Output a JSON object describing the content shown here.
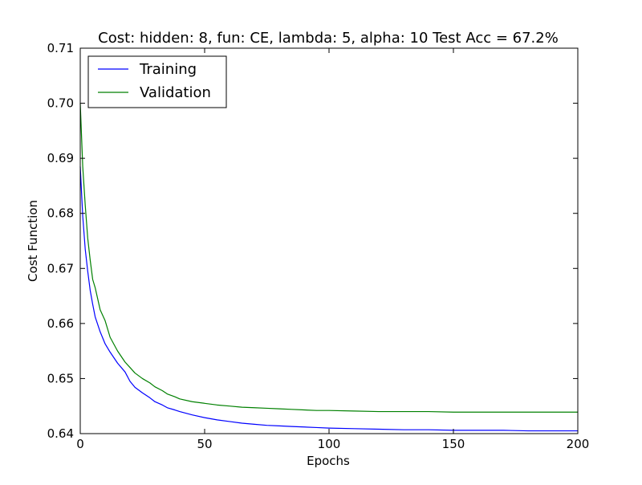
{
  "chart_data": {
    "type": "line",
    "title": "Cost: hidden: 8, fun: CE, lambda: 5, alpha: 10  Test Acc = 67.2%",
    "xlabel": "Epochs",
    "ylabel": "Cost Function",
    "xlim": [
      0,
      200
    ],
    "ylim": [
      0.64,
      0.71
    ],
    "xticks": [
      0,
      50,
      100,
      150,
      200
    ],
    "yticks": [
      0.64,
      0.65,
      0.66,
      0.67,
      0.68,
      0.69,
      0.7,
      0.71
    ],
    "xtick_labels": [
      "0",
      "50",
      "100",
      "150",
      "200"
    ],
    "ytick_labels": [
      "0.64",
      "0.65",
      "0.66",
      "0.67",
      "0.68",
      "0.69",
      "0.70",
      "0.71"
    ],
    "grid": false,
    "legend_position": "top-left",
    "series": [
      {
        "name": "Training",
        "color": "#0000ff",
        "x": [
          0,
          1,
          2,
          3,
          4,
          5,
          6,
          8,
          10,
          12,
          15,
          18,
          20,
          22,
          25,
          28,
          30,
          33,
          35,
          38,
          40,
          45,
          50,
          55,
          60,
          65,
          70,
          75,
          80,
          85,
          90,
          95,
          100,
          110,
          120,
          130,
          140,
          150,
          160,
          170,
          180,
          190,
          200
        ],
        "values": [
          0.6885,
          0.6795,
          0.6735,
          0.6695,
          0.666,
          0.6635,
          0.6612,
          0.6585,
          0.6563,
          0.6548,
          0.6528,
          0.6512,
          0.6495,
          0.6484,
          0.6474,
          0.6465,
          0.6458,
          0.6452,
          0.6447,
          0.6443,
          0.644,
          0.6434,
          0.6429,
          0.6425,
          0.6422,
          0.6419,
          0.6417,
          0.6415,
          0.6414,
          0.6413,
          0.6412,
          0.6411,
          0.641,
          0.6409,
          0.6408,
          0.6407,
          0.6407,
          0.6406,
          0.6406,
          0.6406,
          0.6405,
          0.6405,
          0.6405
        ]
      },
      {
        "name": "Validation",
        "color": "#008000",
        "x": [
          0,
          1,
          2,
          3,
          4,
          5,
          6,
          8,
          10,
          12,
          15,
          18,
          20,
          22,
          25,
          28,
          30,
          33,
          35,
          38,
          40,
          45,
          50,
          55,
          60,
          65,
          70,
          75,
          80,
          85,
          90,
          95,
          100,
          110,
          120,
          130,
          140,
          150,
          160,
          170,
          180,
          190,
          200
        ],
        "values": [
          0.7,
          0.6885,
          0.6815,
          0.6755,
          0.6715,
          0.668,
          0.6665,
          0.6625,
          0.6605,
          0.6575,
          0.655,
          0.653,
          0.652,
          0.651,
          0.65,
          0.6492,
          0.6485,
          0.6478,
          0.6472,
          0.6467,
          0.6463,
          0.6458,
          0.6455,
          0.6452,
          0.645,
          0.6448,
          0.6447,
          0.6446,
          0.6445,
          0.6444,
          0.6443,
          0.6442,
          0.6442,
          0.6441,
          0.644,
          0.644,
          0.644,
          0.6439,
          0.6439,
          0.6439,
          0.6439,
          0.6439,
          0.6439
        ]
      }
    ]
  }
}
